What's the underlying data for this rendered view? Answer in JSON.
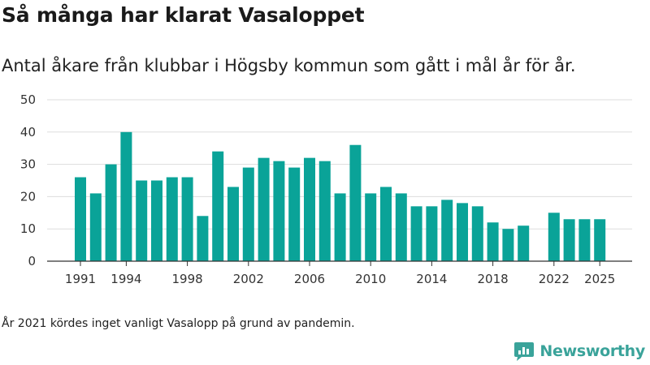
{
  "header": {
    "title": "Så många har klarat Vasaloppet",
    "subtitle": "Antal åkare från klubbar i Högsby kommun som gått i mål år för år."
  },
  "footer": {
    "note": "År 2021 kördes inget vanligt Vasalopp på grund av pandemin.",
    "brand": "Newsworthy"
  },
  "colors": {
    "bar": "#0aa398",
    "grid": "#dddddd",
    "axis": "#333333",
    "brand": "#3aa39a"
  },
  "chart_data": {
    "type": "bar",
    "x": [
      1991,
      1992,
      1993,
      1994,
      1995,
      1996,
      1997,
      1998,
      1999,
      2000,
      2001,
      2002,
      2003,
      2004,
      2005,
      2006,
      2007,
      2008,
      2009,
      2010,
      2011,
      2012,
      2013,
      2014,
      2015,
      2016,
      2017,
      2018,
      2019,
      2020,
      2021,
      2022,
      2023,
      2024,
      2025
    ],
    "values": [
      26,
      21,
      30,
      40,
      25,
      25,
      26,
      26,
      14,
      34,
      23,
      29,
      32,
      31,
      29,
      32,
      31,
      21,
      36,
      21,
      23,
      21,
      17,
      17,
      19,
      18,
      17,
      12,
      10,
      11,
      null,
      15,
      13,
      13,
      13
    ],
    "xticks": [
      "1991",
      "1994",
      "1998",
      "2002",
      "2006",
      "2010",
      "2014",
      "2018",
      "2022",
      "2025"
    ],
    "yticks": [
      "0",
      "10",
      "20",
      "30",
      "40",
      "50"
    ],
    "ylim": [
      0,
      50
    ],
    "grid": true,
    "xlabel": "",
    "ylabel": ""
  }
}
